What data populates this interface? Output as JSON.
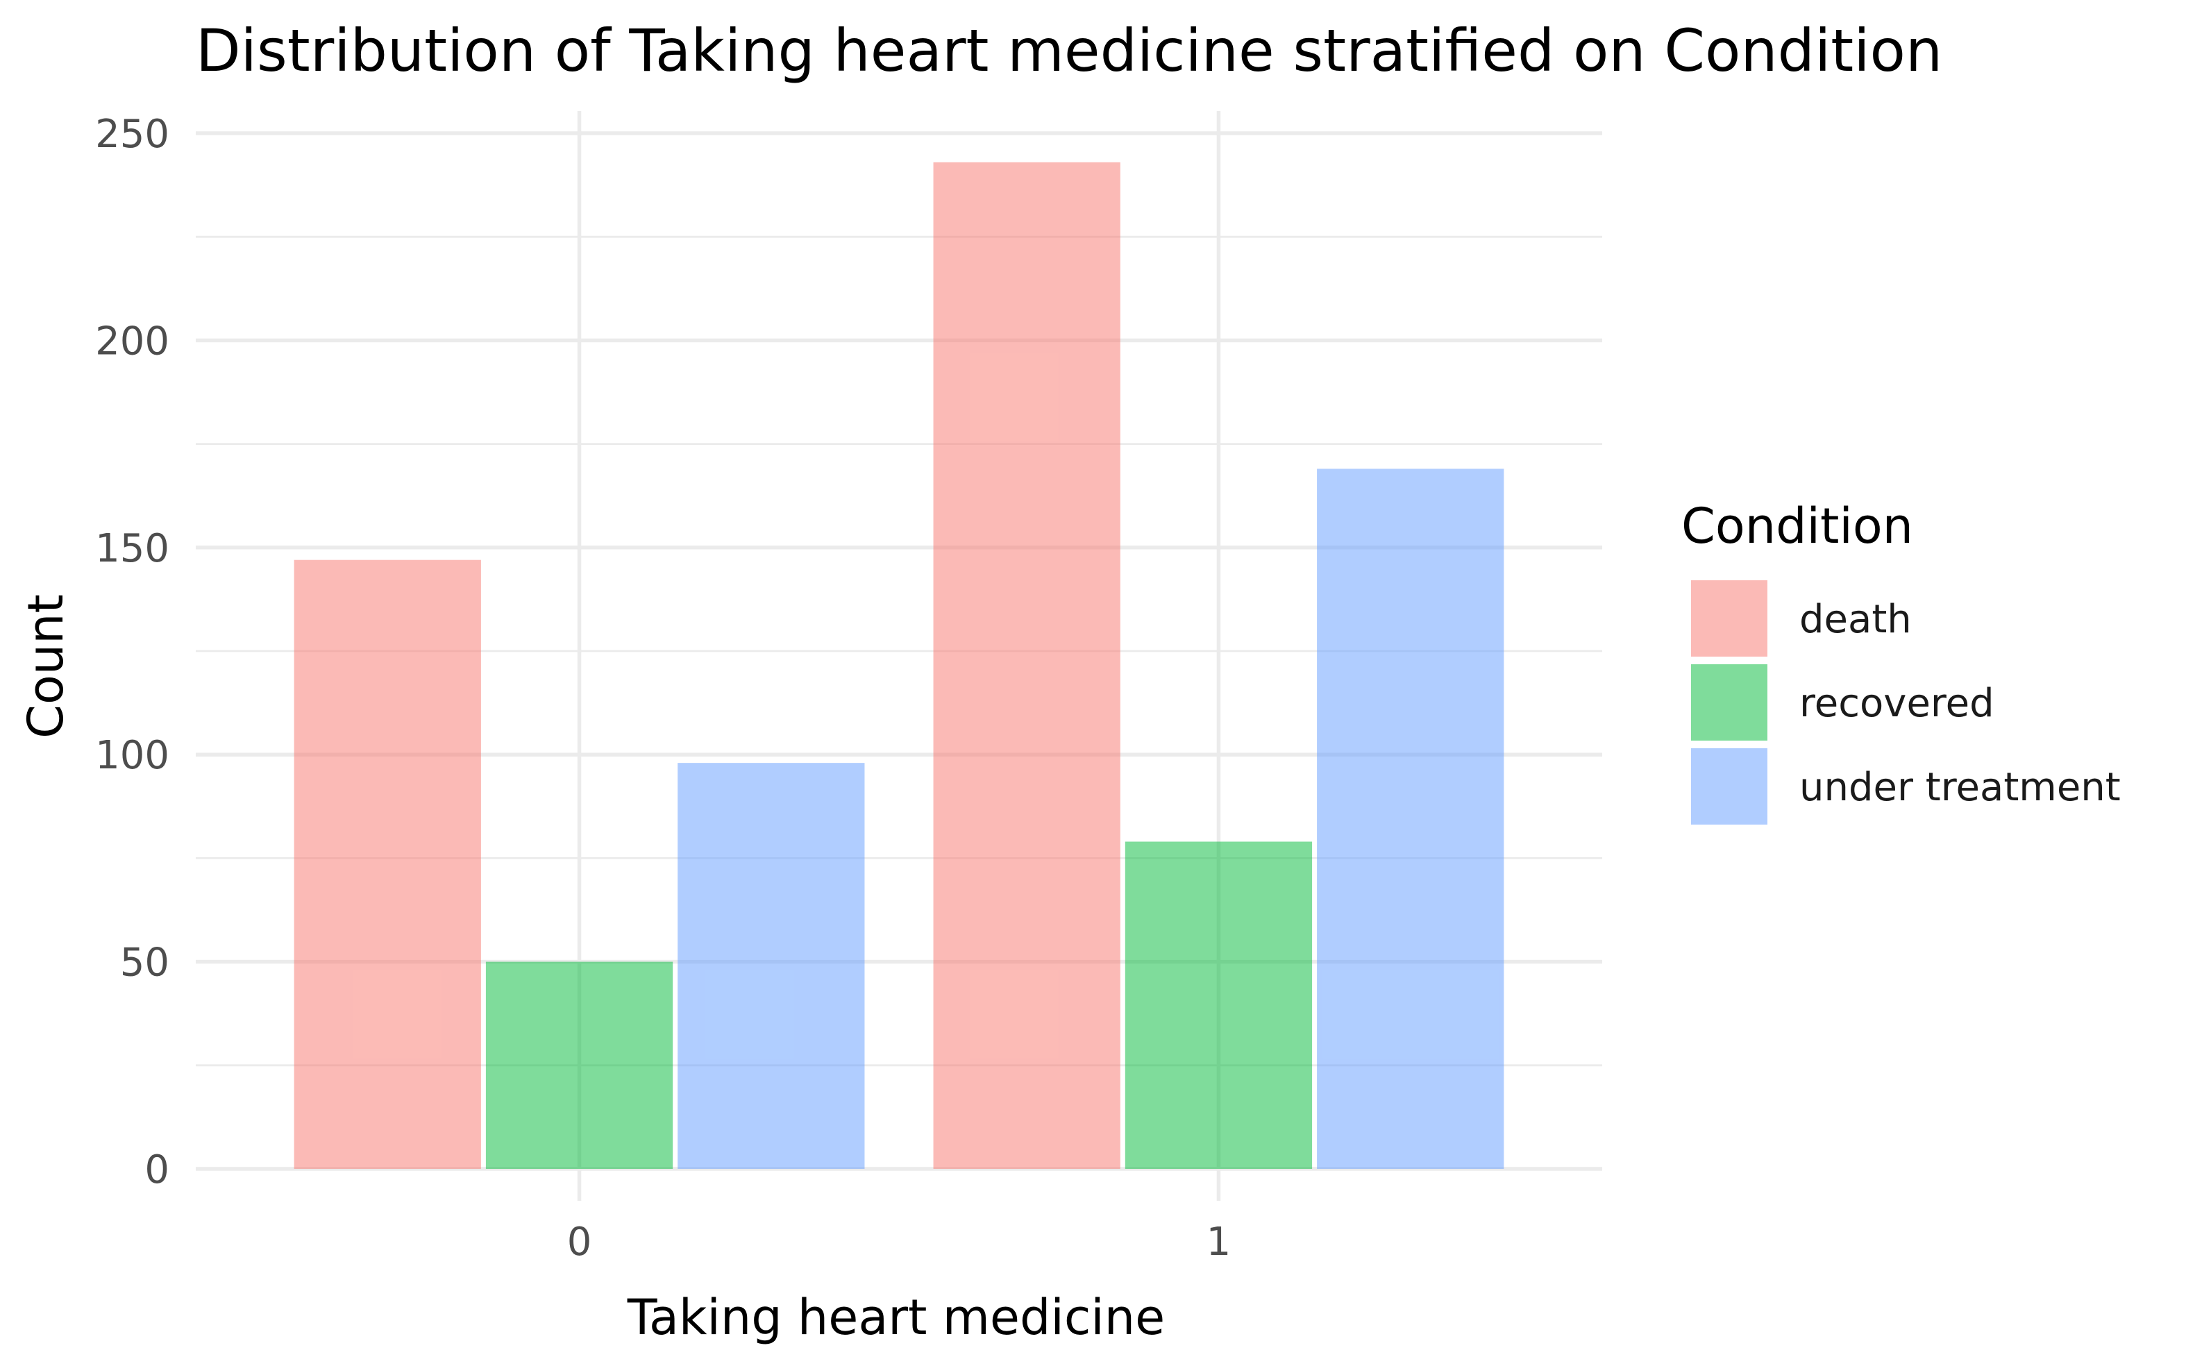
{
  "chart_data": {
    "type": "bar",
    "title": "Distribution of Taking heart medicine stratified on Condition",
    "xlabel": "Taking heart medicine",
    "ylabel": "Count",
    "categories": [
      "0",
      "1"
    ],
    "series": [
      {
        "name": "death",
        "values": [
          147,
          243
        ],
        "color": "#F8766D"
      },
      {
        "name": "recovered",
        "values": [
          50,
          79
        ],
        "color": "#00BA38"
      },
      {
        "name": "under treatment",
        "values": [
          98,
          169
        ],
        "color": "#619CFF"
      }
    ],
    "bar_opacity": 0.5,
    "ylim": [
      0,
      255
    ],
    "yticks": [
      "0",
      "50",
      "100",
      "150",
      "200",
      "250"
    ],
    "grid": true,
    "legend": {
      "title": "Condition",
      "position": "right"
    }
  }
}
